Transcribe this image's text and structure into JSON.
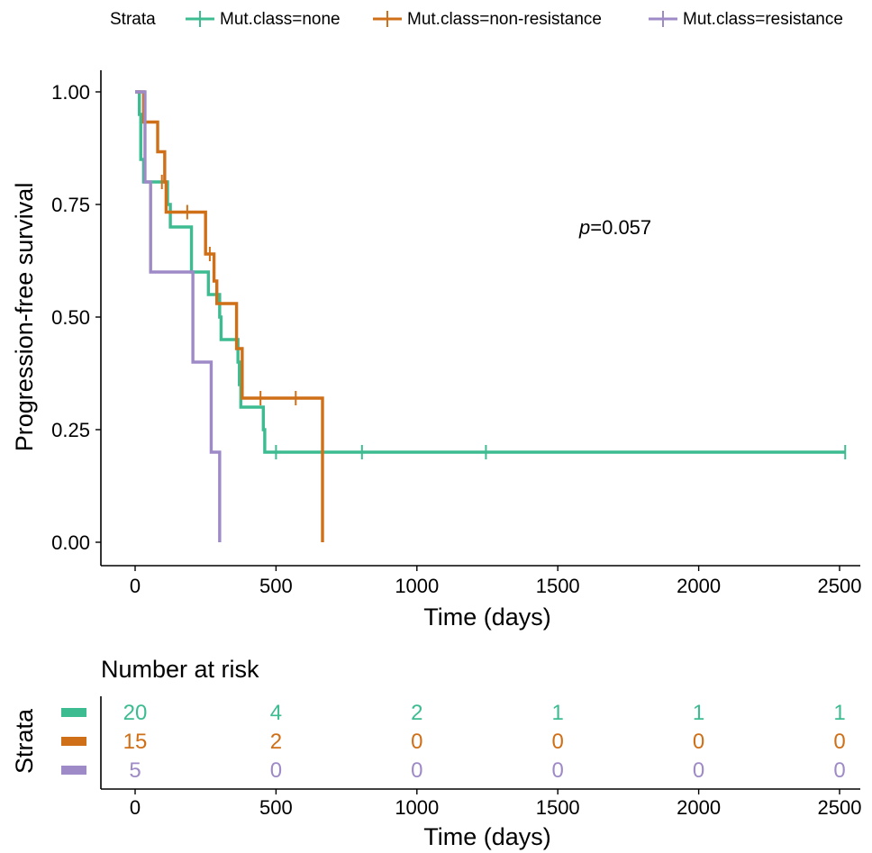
{
  "chart_data": {
    "type": "line",
    "subtype": "kaplan-meier",
    "legend": {
      "title": "Strata",
      "position": "top",
      "entries": [
        "Mut.class=none",
        "Mut.class=non-resistance",
        "Mut.class=resistance"
      ]
    },
    "xlabel": "Time (days)",
    "ylabel": "Progression-free survival",
    "xlim": [
      0,
      2500
    ],
    "ylim": [
      0,
      1
    ],
    "x_ticks": [
      0,
      500,
      1000,
      1500,
      2000,
      2500
    ],
    "y_ticks": [
      "0.00",
      "0.25",
      "0.50",
      "0.75",
      "1.00"
    ],
    "annotation": {
      "italic": "p",
      "text": "=0.057"
    },
    "series": [
      {
        "name": "Mut.class=none",
        "color": "#3dbb91",
        "steps": [
          [
            0,
            1.0
          ],
          [
            15,
            0.95
          ],
          [
            20,
            0.85
          ],
          [
            30,
            0.8
          ],
          [
            95,
            0.8
          ],
          [
            115,
            0.75
          ],
          [
            125,
            0.7
          ],
          [
            185,
            0.7
          ],
          [
            200,
            0.6
          ],
          [
            250,
            0.6
          ],
          [
            260,
            0.55
          ],
          [
            295,
            0.55
          ],
          [
            300,
            0.5
          ],
          [
            305,
            0.45
          ],
          [
            360,
            0.45
          ],
          [
            365,
            0.4
          ],
          [
            370,
            0.35
          ],
          [
            375,
            0.3
          ],
          [
            450,
            0.3
          ],
          [
            455,
            0.25
          ],
          [
            460,
            0.2
          ],
          [
            2520,
            0.2
          ]
        ],
        "censor": [
          [
            500,
            0.2
          ],
          [
            805,
            0.2
          ],
          [
            1245,
            0.2
          ],
          [
            2520,
            0.2
          ]
        ]
      },
      {
        "name": "Mut.class=non-resistance",
        "color": "#cf6f17",
        "steps": [
          [
            0,
            1.0
          ],
          [
            20,
            1.0
          ],
          [
            30,
            0.933
          ],
          [
            75,
            0.933
          ],
          [
            80,
            0.867
          ],
          [
            100,
            0.867
          ],
          [
            105,
            0.8
          ],
          [
            110,
            0.733
          ],
          [
            240,
            0.733
          ],
          [
            250,
            0.64
          ],
          [
            275,
            0.64
          ],
          [
            280,
            0.58
          ],
          [
            290,
            0.53
          ],
          [
            355,
            0.53
          ],
          [
            360,
            0.43
          ],
          [
            375,
            0.43
          ],
          [
            380,
            0.32
          ],
          [
            665,
            0.32
          ],
          [
            665,
            0.0
          ]
        ],
        "censor": [
          [
            95,
            0.8
          ],
          [
            185,
            0.733
          ],
          [
            265,
            0.64
          ],
          [
            445,
            0.32
          ],
          [
            570,
            0.32
          ]
        ]
      },
      {
        "name": "Mut.class=resistance",
        "color": "#9e8ac6",
        "steps": [
          [
            0,
            1.0
          ],
          [
            30,
            1.0
          ],
          [
            35,
            0.8
          ],
          [
            50,
            0.8
          ],
          [
            55,
            0.6
          ],
          [
            200,
            0.6
          ],
          [
            205,
            0.4
          ],
          [
            265,
            0.4
          ],
          [
            270,
            0.2
          ],
          [
            300,
            0.2
          ],
          [
            300,
            0.0
          ]
        ],
        "censor": []
      }
    ],
    "risk_table": {
      "title": "Number at risk",
      "ylabel": "Strata",
      "xlabel": "Time (days)",
      "times": [
        0,
        500,
        1000,
        1500,
        2000,
        2500
      ],
      "rows": [
        {
          "name": "Mut.class=none",
          "color": "#3dbb91",
          "values": [
            "20",
            "4",
            "2",
            "1",
            "1",
            "1"
          ]
        },
        {
          "name": "Mut.class=non-resistance",
          "color": "#cf6f17",
          "values": [
            "15",
            "2",
            "0",
            "0",
            "0",
            "0"
          ]
        },
        {
          "name": "Mut.class=resistance",
          "color": "#9e8ac6",
          "values": [
            "5",
            "0",
            "0",
            "0",
            "0",
            "0"
          ]
        }
      ]
    }
  }
}
